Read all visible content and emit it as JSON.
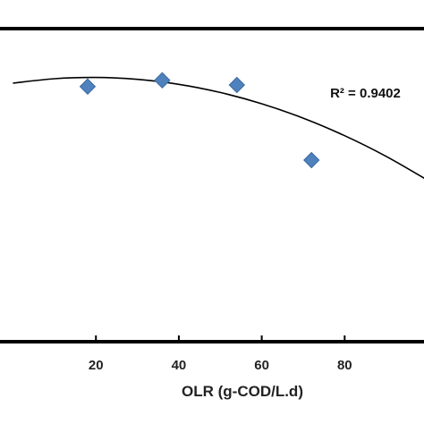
{
  "chart_data": {
    "type": "scatter",
    "title": "",
    "xlabel": "OLR (g-COD/L.d)",
    "ylabel": "",
    "xlim": [
      -4,
      100
    ],
    "ylim": [
      0,
      100
    ],
    "x_ticks": [
      20,
      40,
      60,
      80
    ],
    "x_tick_labels": [
      "20",
      "40",
      "60",
      "80"
    ],
    "grid": false,
    "legend": "none",
    "marker_color": "#4f81bd",
    "series": [
      {
        "marker": "diamond",
        "x": [
          18,
          36,
          54,
          72
        ],
        "y": [
          81.5,
          83.5,
          82,
          58
        ]
      }
    ],
    "trendline": {
      "kind": "polynomial",
      "x": [
        0,
        10,
        20,
        30,
        40,
        50,
        60,
        70,
        80,
        90,
        100
      ],
      "y": [
        82.6,
        84.0,
        84.4,
        83.8,
        82.2,
        79.6,
        76.0,
        71.4,
        65.8,
        59.2,
        51.6
      ],
      "color": "#000000"
    },
    "annotations": [
      {
        "text": "R² = 0.9402",
        "x": 85,
        "y": 78
      }
    ]
  }
}
